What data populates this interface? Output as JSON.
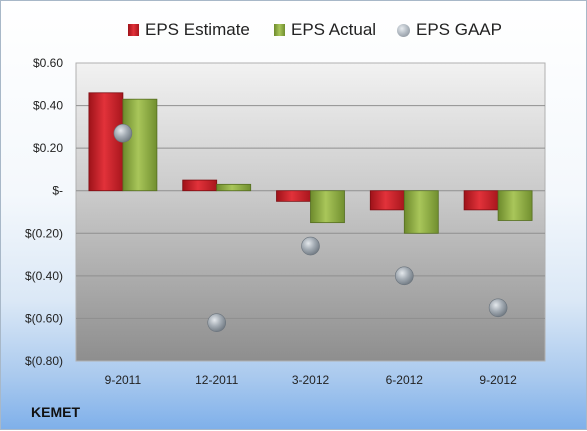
{
  "company": "KEMET",
  "colors": {
    "estimate": "#c0202a",
    "actual": "#8aaa3c",
    "gaap": "#9aa3ab"
  },
  "chart_data": {
    "type": "bar",
    "categories": [
      "9-2011",
      "12-2011",
      "3-2012",
      "6-2012",
      "9-2012"
    ],
    "series": [
      {
        "name": "EPS Estimate",
        "values": [
          0.46,
          0.05,
          -0.05,
          -0.09,
          -0.09
        ]
      },
      {
        "name": "EPS Actual",
        "values": [
          0.43,
          0.03,
          -0.15,
          -0.2,
          -0.14
        ]
      },
      {
        "name": "EPS GAAP",
        "type": "scatter",
        "values": [
          0.27,
          -0.62,
          -0.26,
          -0.4,
          -0.55
        ]
      }
    ],
    "ylim": [
      -0.8,
      0.6
    ],
    "yticks": [
      0.6,
      0.4,
      0.2,
      0,
      -0.2,
      -0.4,
      -0.6,
      -0.8
    ],
    "ytick_labels": [
      "$0.60",
      "$0.40",
      "$0.20",
      "$-",
      "$(0.20)",
      "$(0.40)",
      "$(0.60)",
      "$(0.80)"
    ],
    "grid": true,
    "legend": "top"
  }
}
